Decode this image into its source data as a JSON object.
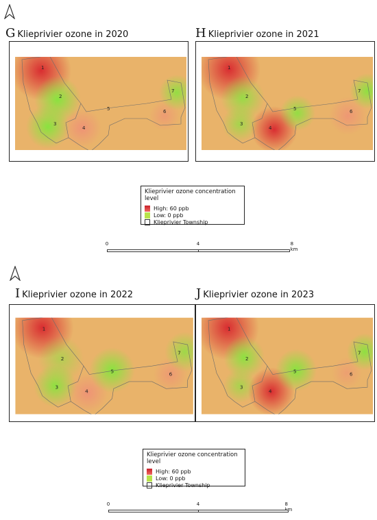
{
  "panels": [
    {
      "letter": "G",
      "title": "Klieprivier ozone in 2020"
    },
    {
      "letter": "H",
      "title": "Klieprivier ozone in 2021"
    },
    {
      "letter": "I",
      "title": "Klieprivier ozone in 2022"
    },
    {
      "letter": "J",
      "title": "Klieprivier ozone in 2023"
    }
  ],
  "site_labels": [
    "1",
    "2",
    "3",
    "4",
    "5",
    "6",
    "7"
  ],
  "legend": {
    "title": "Klieprivier ozone concentration level",
    "high": "High: 60 ppb",
    "low": "Low: 0 ppb",
    "township": "Klieprivier Township"
  },
  "scale": {
    "t0": "0",
    "t1": "4",
    "t2": "8 km"
  },
  "colors": {
    "high": "#d8262e",
    "mid": "#f08c78",
    "low": "#7fe83a",
    "base": "#e9b36a"
  }
}
